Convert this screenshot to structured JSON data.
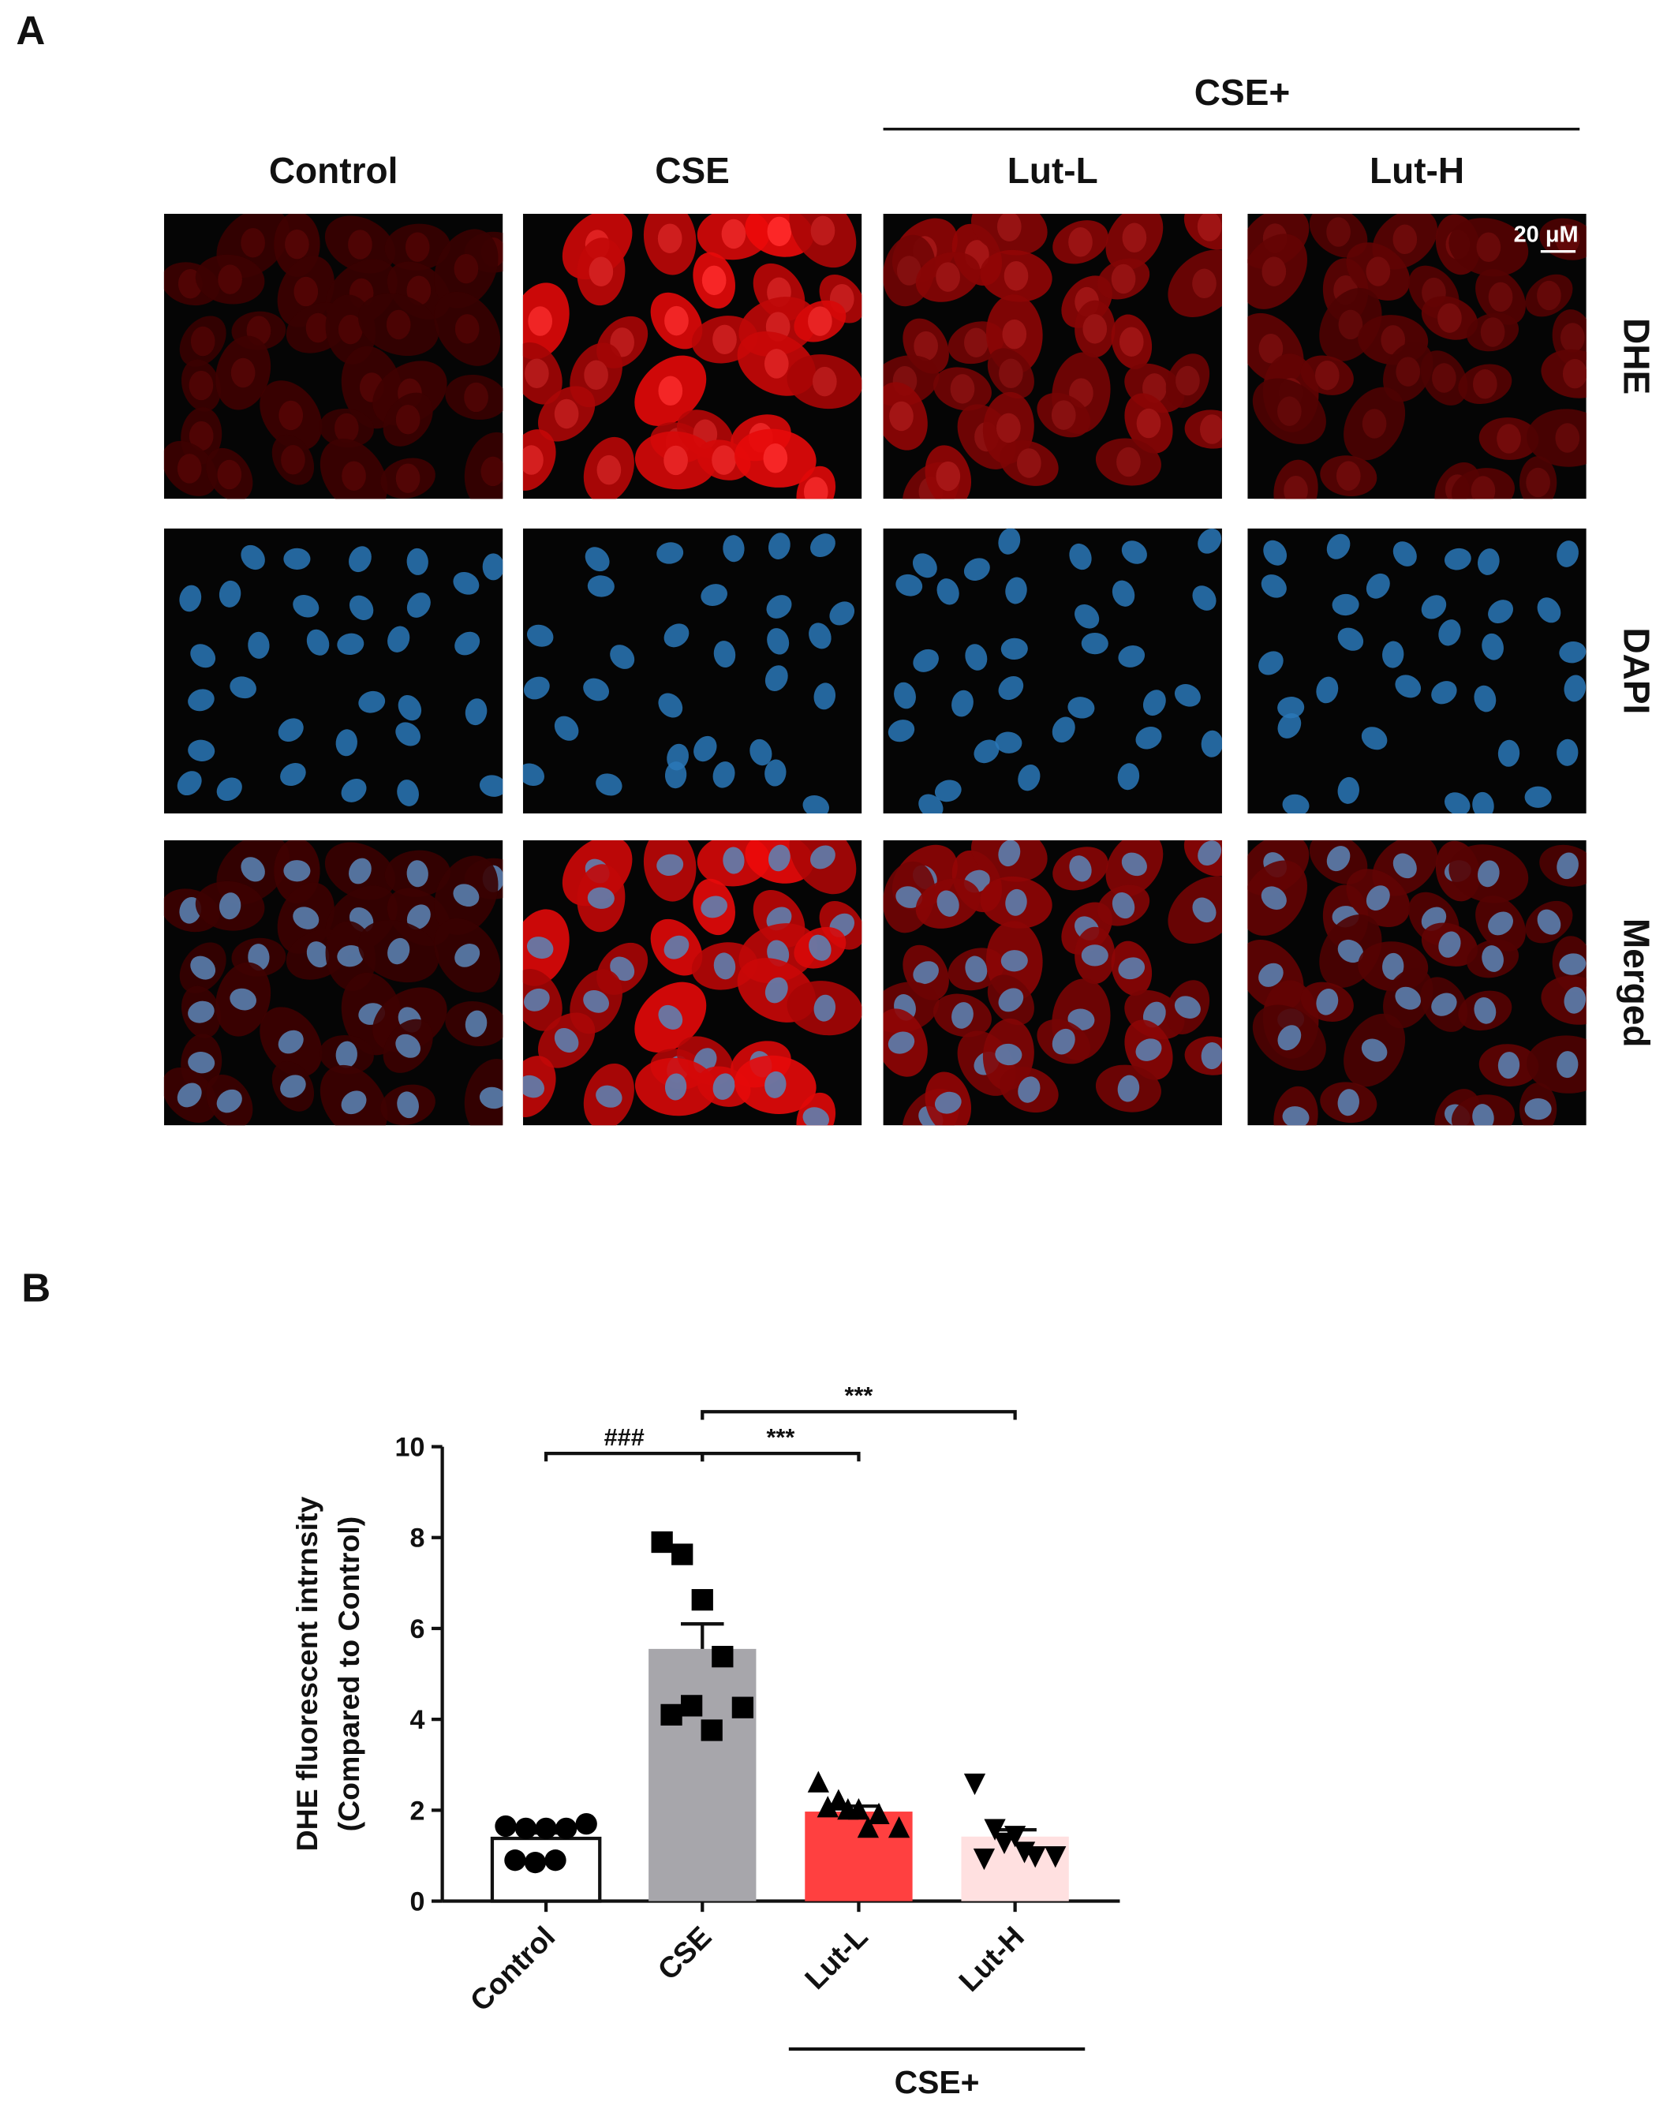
{
  "panel_a": {
    "label": "A",
    "group_label": "CSE+",
    "columns": [
      "Control",
      "CSE",
      "Lut-L",
      "Lut-H"
    ],
    "rows": [
      "DHE",
      "DAPI",
      "Merged"
    ],
    "scale_bar": "20 μM"
  },
  "panel_b_label": "B",
  "chart_data": {
    "type": "bar",
    "ylabel": [
      "DHE fluorescent intrnsity",
      "(Compared to Control)"
    ],
    "categories": [
      "Control",
      "CSE",
      "Lut-L",
      "Lut-H"
    ],
    "values": [
      1.38,
      5.55,
      1.97,
      1.42
    ],
    "errors": [
      0.12,
      0.55,
      0.12,
      0.15
    ],
    "colors": [
      "#ffffff",
      "#a7a6ab",
      "#ff4040",
      "#ffe0e0"
    ],
    "markers": [
      "circle",
      "square",
      "triangle",
      "triangle-down"
    ],
    "points": [
      [
        1.65,
        1.6,
        1.6,
        1.6,
        1.7,
        0.9,
        0.85,
        0.9
      ],
      [
        7.9,
        7.63,
        6.63,
        5.38,
        4.26,
        4.1,
        4.3,
        3.76
      ],
      [
        2.6,
        2.2,
        2.0,
        1.9,
        1.6,
        2.05,
        2.0,
        1.6
      ],
      [
        2.6,
        1.6,
        1.45,
        1.0,
        1.0,
        0.95,
        1.3,
        1.1
      ]
    ],
    "ylim": [
      0,
      10
    ],
    "yticks": [
      0,
      2,
      4,
      6,
      8,
      10
    ],
    "group": {
      "label": "CSE+",
      "categories": [
        "Lut-L",
        "Lut-H"
      ]
    },
    "annotations": [
      {
        "text": "###",
        "between": [
          "Control",
          "CSE"
        ]
      },
      {
        "text": "***",
        "between": [
          "CSE",
          "Lut-L"
        ]
      },
      {
        "text": "***",
        "between": [
          "CSE",
          "Lut-H"
        ]
      }
    ]
  }
}
